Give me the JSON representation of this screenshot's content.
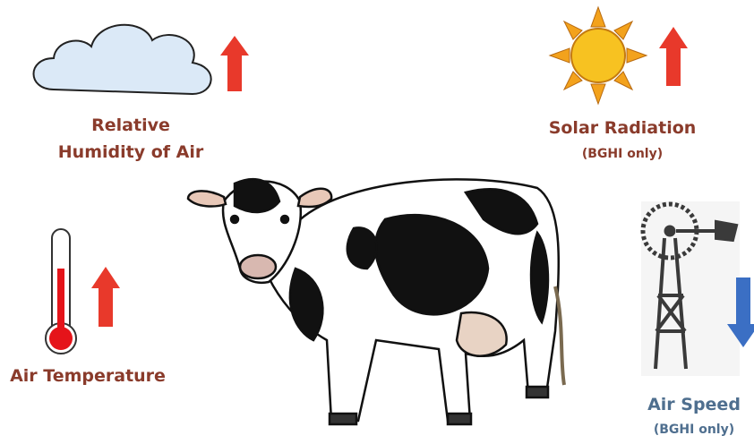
{
  "factors": [
    {
      "label": [
        "Relative",
        "Humidity of Air"
      ]
    },
    {
      "label": [
        "Solar Radiation"
      ],
      "note": "(BGHI only)"
    },
    {
      "label": [
        "Air Temperature"
      ]
    },
    {
      "label": [
        "Air Speed"
      ],
      "note": "(BGHI only)"
    }
  ]
}
